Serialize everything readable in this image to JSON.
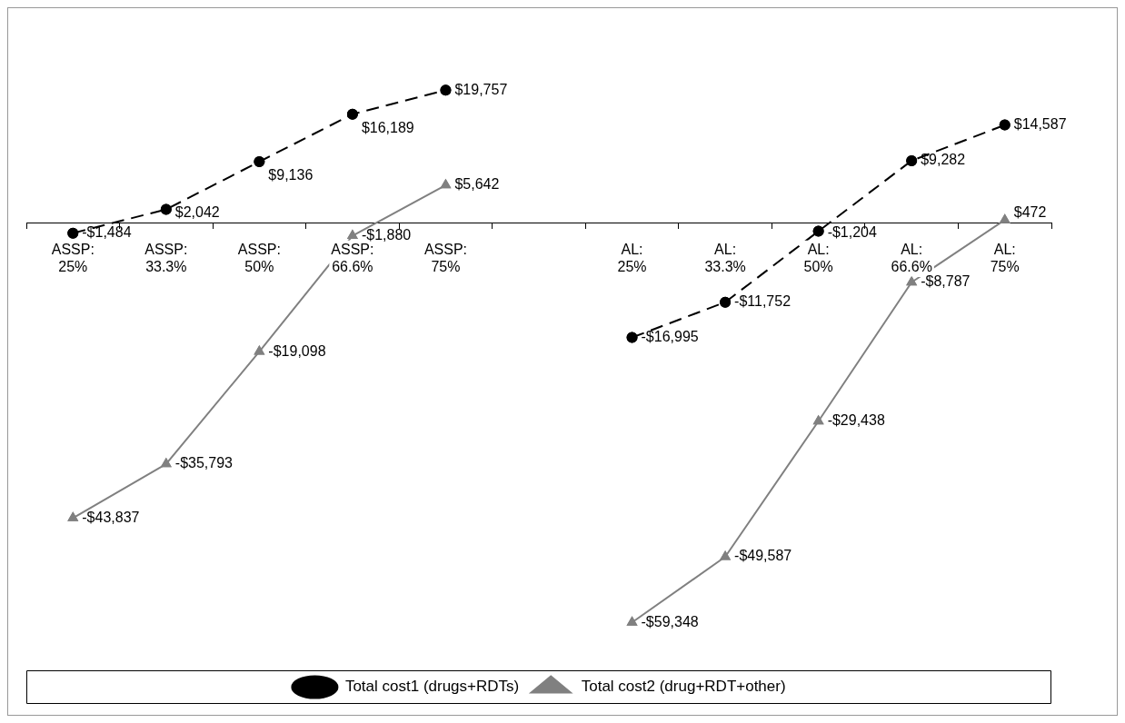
{
  "chart_data": {
    "type": "line",
    "categories": [
      "ASSP: 25%",
      "ASSP: 33.3%",
      "ASSP: 50%",
      "ASSP: 66.6%",
      "ASSP: 75%",
      null,
      "AL: 25%",
      "AL: 33.3%",
      "AL: 50%",
      "AL: 66.6%",
      "AL: 75%"
    ],
    "series": [
      {
        "name": "Total cost1 (drugs+RDTs)",
        "color": "#000000",
        "marker": "circle",
        "line_style": "dashed",
        "values": [
          -1484,
          2042,
          9136,
          16189,
          19757,
          null,
          -16995,
          -11752,
          -1204,
          9282,
          14587
        ],
        "value_labels": [
          "-$1,484",
          "$2,042",
          "$9,136",
          "$16,189",
          "$19,757",
          null,
          "-$16,995",
          "-$11,752",
          "-$1,204",
          "$9,282",
          "$14,587"
        ]
      },
      {
        "name": "Total cost2 (drug+RDT+other)",
        "color": "#808080",
        "marker": "triangle",
        "line_style": "solid",
        "values": [
          -43837,
          -35793,
          -19098,
          -1880,
          5642,
          null,
          -59348,
          -49587,
          -29438,
          -8787,
          472
        ],
        "value_labels": [
          "-$43,837",
          "-$35,793",
          "-$19,098",
          "-$1,880",
          "$5,642",
          null,
          "-$59,348",
          "-$49,587",
          "-$29,438",
          "-$8,787",
          "$472"
        ]
      }
    ],
    "legend": "bottom"
  }
}
